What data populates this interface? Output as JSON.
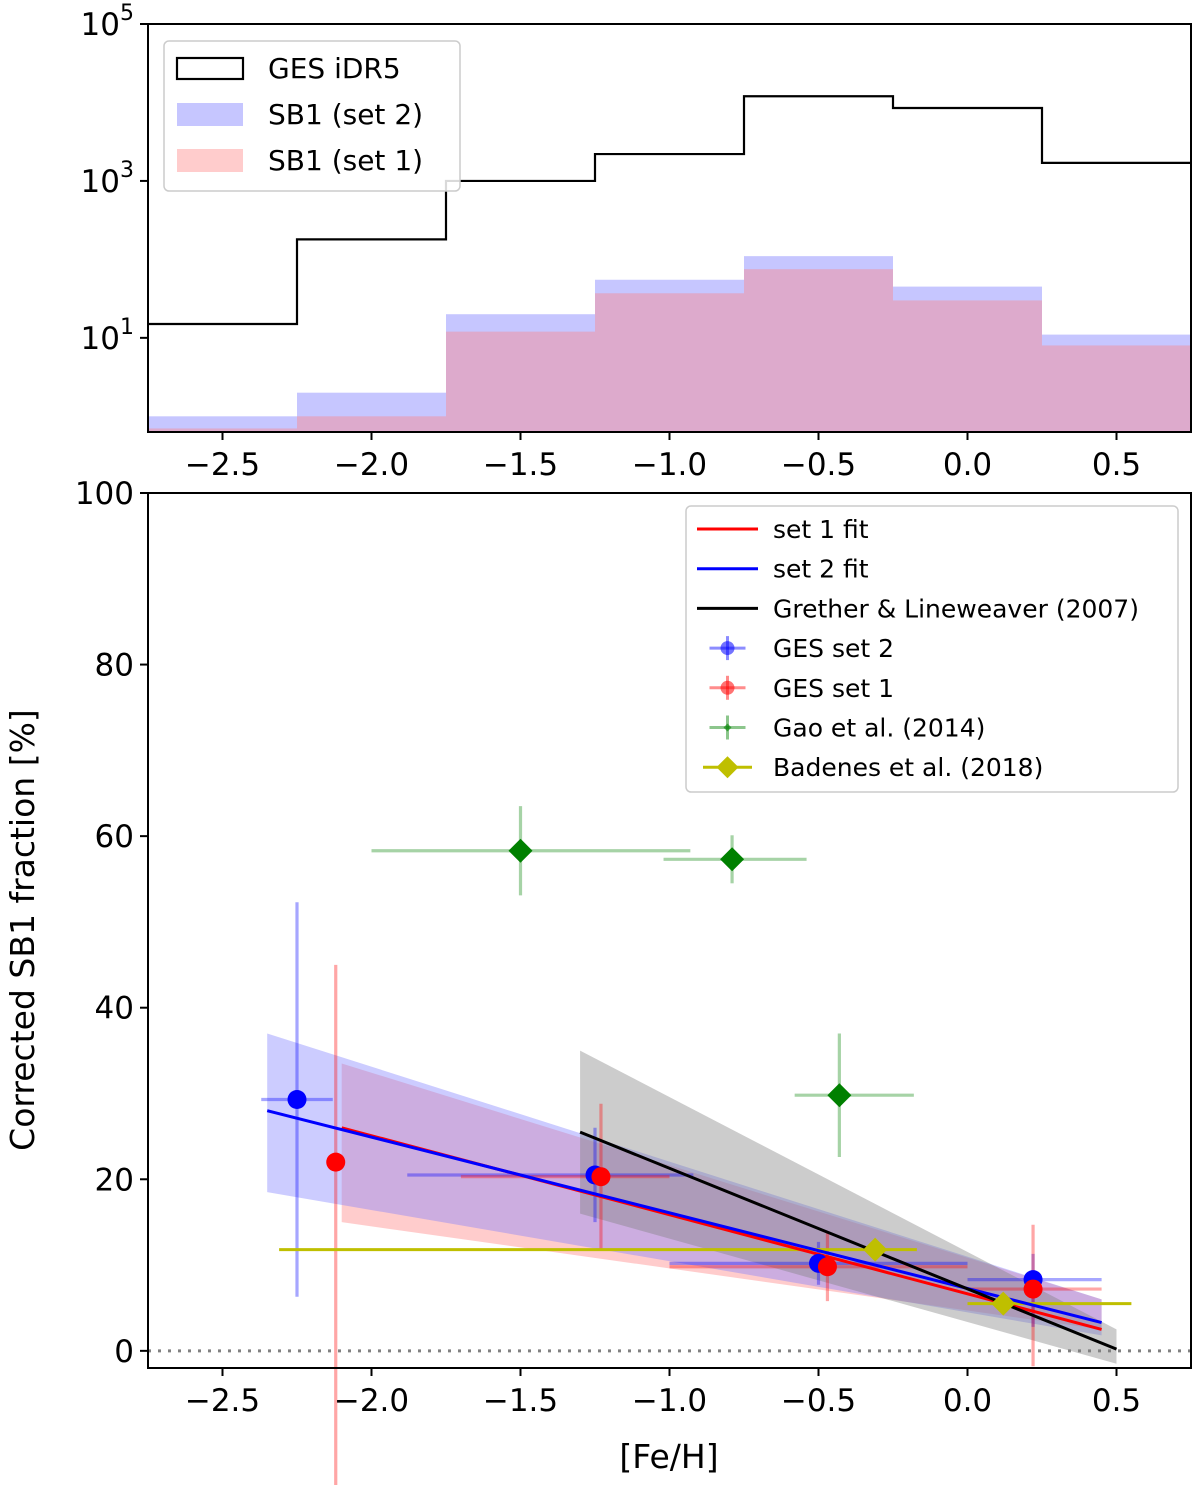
{
  "chart_data": [
    {
      "type": "histogram",
      "title": "",
      "xlabel": "",
      "ylabel": "",
      "yscale": "log",
      "xlim": [
        -2.75,
        0.75
      ],
      "ylim_log10": [
        -0.2,
        5
      ],
      "x_ticks": [
        -2.5,
        -2.0,
        -1.5,
        -1.0,
        -0.5,
        0.0,
        0.5
      ],
      "x_tick_labels": [
        "−2.5",
        "−2.0",
        "−1.5",
        "−1.0",
        "−0.5",
        "0.0",
        "0.5"
      ],
      "y_ticks": [
        {
          "base": "10",
          "exp": "1",
          "log10": 1
        },
        {
          "base": "10",
          "exp": "3",
          "log10": 3
        },
        {
          "base": "10",
          "exp": "5",
          "log10": 5
        }
      ],
      "bin_edges": [
        -2.75,
        -2.25,
        -1.75,
        -1.25,
        -0.75,
        -0.25,
        0.25,
        0.75
      ],
      "series": [
        {
          "name": "GES iDR5",
          "style": "step",
          "color": "#000000",
          "values": [
            15,
            180,
            1000,
            2200,
            12000,
            8500,
            1700
          ]
        },
        {
          "name": "SB1 (set 2)",
          "style": "filled",
          "color": "#7070ff",
          "values": [
            1,
            2,
            20,
            55,
            110,
            45,
            11
          ]
        },
        {
          "name": "SB1 (set 1)",
          "style": "filled",
          "color": "#ff8080",
          "values": [
            0.7,
            1,
            12,
            37,
            75,
            30,
            8
          ]
        }
      ],
      "legend": {
        "position": "top-left",
        "entries": [
          "GES iDR5",
          "SB1 (set 2)",
          "SB1 (set 1)"
        ]
      }
    },
    {
      "type": "scatter",
      "title": "",
      "xlabel": "[Fe/H]",
      "ylabel": "Corrected SB1 fraction [%]",
      "xlim": [
        -2.75,
        0.75
      ],
      "ylim": [
        -2,
        100
      ],
      "x_ticks": [
        -2.5,
        -2.0,
        -1.5,
        -1.0,
        -0.5,
        0.0,
        0.5
      ],
      "x_tick_labels": [
        "−2.5",
        "−2.0",
        "−1.5",
        "−1.0",
        "−0.5",
        "0.0",
        "0.5"
      ],
      "y_ticks": [
        0,
        20,
        40,
        60,
        80,
        100
      ],
      "y_tick_labels": [
        "0",
        "20",
        "40",
        "60",
        "80",
        "100"
      ],
      "reference_line": {
        "y": 0,
        "style": "dotted",
        "color": "#808080"
      },
      "bands": [
        {
          "name": "set 1 band",
          "color": "#ff8080",
          "x": [
            -2.1,
            0.45
          ],
          "upper": [
            33.5,
            6.0
          ],
          "lower": [
            15.0,
            2.5
          ]
        },
        {
          "name": "set 2 band",
          "color": "#8080ff",
          "x": [
            -2.35,
            0.45
          ],
          "upper": [
            37.0,
            6.0
          ],
          "lower": [
            18.5,
            1.8
          ]
        },
        {
          "name": "Grether & Lineweaver band",
          "color": "#808080",
          "x": [
            -1.3,
            0.5
          ],
          "upper": [
            35.0,
            2.5
          ],
          "lower": [
            16.0,
            -1.5
          ]
        }
      ],
      "fits": [
        {
          "name": "set 1 fit",
          "color": "#ff0000",
          "x": [
            -2.1,
            0.45
          ],
          "y": [
            26.0,
            2.5
          ]
        },
        {
          "name": "set 2 fit",
          "color": "#0000ff",
          "x": [
            -2.35,
            0.45
          ],
          "y": [
            28.0,
            3.3
          ]
        },
        {
          "name": "Grether & Lineweaver (2007)",
          "color": "#000000",
          "x": [
            -1.3,
            0.5
          ],
          "y": [
            25.5,
            0.2
          ]
        }
      ],
      "points": [
        {
          "series": "GES set 2",
          "color": "#0000ff",
          "marker": "circle",
          "data": [
            {
              "x": -2.25,
              "y": 29.3,
              "xerr": [
                0.12,
                0.12
              ],
              "yerr": [
                23.0,
                23.0
              ]
            },
            {
              "x": -1.25,
              "y": 20.5,
              "xerr": [
                0.63,
                0.33
              ],
              "yerr": [
                5.5,
                5.5
              ]
            },
            {
              "x": -0.5,
              "y": 10.2,
              "xerr": [
                0.5,
                0.5
              ],
              "yerr": [
                2.5,
                2.5
              ]
            },
            {
              "x": 0.22,
              "y": 8.3,
              "xerr": [
                0.22,
                0.23
              ],
              "yerr": [
                5.5,
                3.0
              ]
            }
          ]
        },
        {
          "series": "GES set 1",
          "color": "#ff0000",
          "marker": "circle",
          "data": [
            {
              "x": -2.12,
              "y": 22.0,
              "xerr": [
                0,
                0
              ],
              "yerr": [
                40.0,
                23.0
              ]
            },
            {
              "x": -1.23,
              "y": 20.3,
              "xerr": [
                0.47,
                0.23
              ],
              "yerr": [
                8.5,
                8.5
              ]
            },
            {
              "x": -0.47,
              "y": 9.8,
              "xerr": [
                0.53,
                0.47
              ],
              "yerr": [
                4.0,
                4.0
              ]
            },
            {
              "x": 0.22,
              "y": 7.2,
              "xerr": [
                0.22,
                0.23
              ],
              "yerr": [
                9.0,
                7.5
              ]
            }
          ]
        },
        {
          "series": "Gao et al. (2014)",
          "color": "#008000",
          "marker": "diamond",
          "data": [
            {
              "x": -1.5,
              "y": 58.3,
              "xerr": [
                0.5,
                0.57
              ],
              "yerr": [
                5.2,
                5.2
              ]
            },
            {
              "x": -0.79,
              "y": 57.3,
              "xerr": [
                0.23,
                0.25
              ],
              "yerr": [
                2.8,
                2.8
              ]
            },
            {
              "x": -0.43,
              "y": 29.8,
              "xerr": [
                0.15,
                0.25
              ],
              "yerr": [
                7.2,
                7.2
              ]
            }
          ]
        },
        {
          "series": "Badenes et al. (2018)",
          "color": "#bfbf00",
          "marker": "diamond",
          "data": [
            {
              "x": -0.31,
              "y": 11.8,
              "xerr": [
                2.0,
                0.14
              ],
              "yerr": [
                0,
                0
              ]
            },
            {
              "x": 0.12,
              "y": 5.5,
              "xerr": [
                0.12,
                0.43
              ],
              "yerr": [
                0,
                0
              ]
            }
          ]
        }
      ],
      "legend": {
        "position": "top-right",
        "entries": [
          {
            "label": "set 1 fit",
            "kind": "line",
            "color": "#ff0000"
          },
          {
            "label": "set 2 fit",
            "kind": "line",
            "color": "#0000ff"
          },
          {
            "label": "Grether & Lineweaver (2007)",
            "kind": "line",
            "color": "#000000"
          },
          {
            "label": "GES set 2",
            "kind": "errorpoint",
            "color": "#0000ff"
          },
          {
            "label": "GES set 1",
            "kind": "errorpoint",
            "color": "#ff0000"
          },
          {
            "label": "Gao et al. (2014)",
            "kind": "errorpoint-small",
            "color": "#008000"
          },
          {
            "label": "Badenes et al. (2018)",
            "kind": "diamond",
            "color": "#bfbf00"
          }
        ]
      }
    }
  ]
}
